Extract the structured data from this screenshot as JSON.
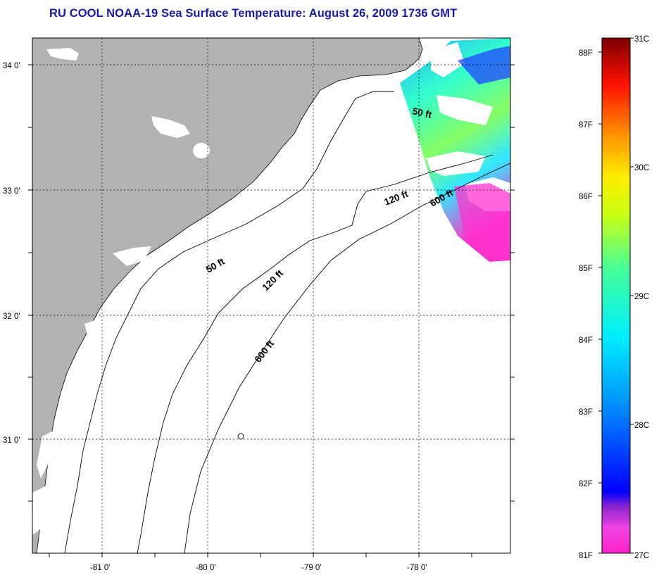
{
  "title": "RU COOL  NOAA-19  Sea Surface Temperature:  August 26, 2009 1736 GMT",
  "lat_labels": [
    "34 0'",
    "33 0'",
    "32 0'",
    "31 0'"
  ],
  "lon_labels": [
    "-81 0'",
    "-80 0'",
    "-79 0'",
    "-78 0'"
  ],
  "contour_labels": {
    "c50_north": "50 ft",
    "c50_south": "50 ft",
    "c120_north": "120 ft",
    "c120_south": "120 ft",
    "c600_north": "600 ft",
    "c600_south": "600 ft"
  },
  "colorbar": {
    "fahrenheit": [
      "88F",
      "87F",
      "86F",
      "85F",
      "84F",
      "83F",
      "82F",
      "81F"
    ],
    "celsius": [
      "31C",
      "30C",
      "29C",
      "28C",
      "27C"
    ]
  },
  "colors": {
    "title": "#1a1aa8",
    "land": "#b2b2b2",
    "ocean": "#ffffff",
    "grid": "#000000"
  },
  "icons": {
    "land": "land-mass",
    "clouds": "cloud-mask-patches",
    "sst_swath": "satellite-swath"
  }
}
